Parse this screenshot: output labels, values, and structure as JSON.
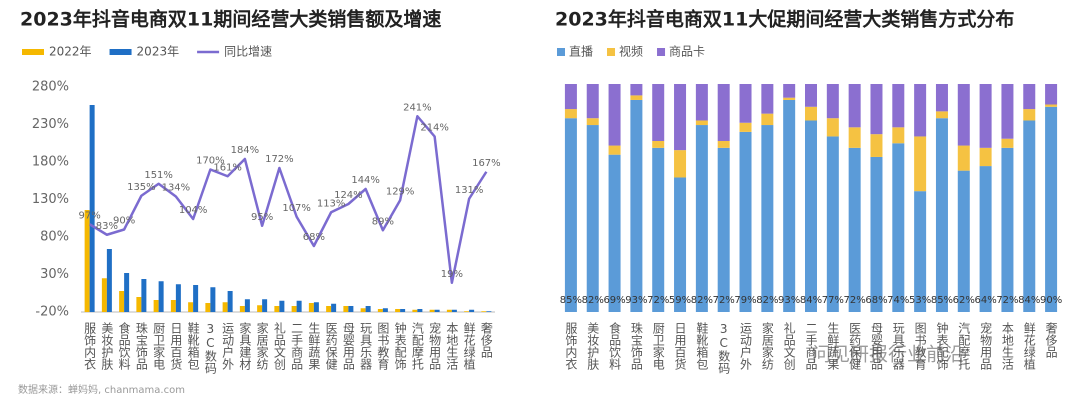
{
  "chart_data": [
    {
      "type": "combo",
      "title": "2023年抖音电商双11期间经营大类销售额及增速",
      "categories": [
        "服饰内衣",
        "美妆护肤",
        "食品饮料",
        "珠宝饰品",
        "厨卫家电",
        "日用百货",
        "鞋靴箱包",
        "3C数码",
        "运动户外",
        "家具建材",
        "家居家纺",
        "礼品文创",
        "二手商品",
        "生鲜蔬果",
        "医药保健",
        "母婴用品",
        "玩具乐器",
        "图书教育",
        "钟表配饰",
        "汽配摩托",
        "宠物用品",
        "本地生活",
        "鲜花绿植",
        "奢侈品"
      ],
      "series": [
        {
          "name": "2022年",
          "type": "bar",
          "color": "#f5b800",
          "values": [
            116,
            25,
            8,
            0,
            -4,
            -4,
            -7,
            -8,
            -7,
            -12,
            -11,
            -12,
            -12,
            -8,
            -12,
            -12,
            -15,
            -16,
            -16,
            -17,
            -17,
            -17,
            -19,
            -19
          ]
        },
        {
          "name": "2023年",
          "type": "bar",
          "color": "#1f6fc5",
          "values": [
            256,
            64,
            32,
            24,
            21,
            17,
            16,
            13,
            8,
            -3,
            -3,
            -5,
            -5,
            -7,
            -9,
            -12,
            -12,
            -15,
            -16,
            -16,
            -17,
            -17,
            -17,
            -19
          ]
        },
        {
          "name": "同比增速",
          "type": "line",
          "color": "#7b6bd0",
          "values": [
            97,
            83,
            90,
            135,
            151,
            134,
            104,
            170,
            161,
            184,
            95,
            172,
            107,
            68,
            113,
            124,
            144,
            89,
            129,
            241,
            214,
            19,
            131,
            167
          ],
          "value_labels": [
            "97%",
            "83%",
            "90%",
            "135%",
            "151%",
            "134%",
            "104%",
            "170%",
            "161%",
            "184%",
            "95%",
            "172%",
            "107%",
            "68%",
            "113%",
            "124%",
            "144%",
            "89%",
            "129%",
            "241%",
            "214%",
            "19%",
            "131%",
            "167%"
          ]
        }
      ],
      "ylim": [
        -20,
        280
      ],
      "yticks": [
        {
          "value": -20,
          "label": "-20%"
        },
        {
          "value": 30,
          "label": "30%"
        },
        {
          "value": 80,
          "label": "80%"
        },
        {
          "value": 130,
          "label": "130%"
        },
        {
          "value": 180,
          "label": "180%"
        },
        {
          "value": 230,
          "label": "230%"
        },
        {
          "value": 280,
          "label": "280%"
        }
      ],
      "grid": false,
      "legend": "top-left"
    },
    {
      "type": "stacked_bar",
      "title": "2023年抖音电商双11大促期间经营大类销售方式分布",
      "categories": [
        "服饰内衣",
        "美妆护肤",
        "食品饮料",
        "珠宝饰品",
        "厨卫家电",
        "日用百货",
        "鞋靴箱包",
        "3C数码",
        "运动户外",
        "家居家纺",
        "礼品文创",
        "二手商品",
        "生鲜蔬果",
        "医药保健",
        "母婴用品",
        "玩具乐器",
        "图书教育",
        "钟表配饰",
        "汽配摩托",
        "宠物用品",
        "本地生活",
        "鲜花绿植",
        "奢侈品"
      ],
      "series": [
        {
          "name": "直播",
          "color": "#5b9bd8",
          "values": [
            85,
            82,
            69,
            93,
            72,
            59,
            82,
            72,
            79,
            82,
            93,
            84,
            77,
            72,
            68,
            74,
            53,
            85,
            62,
            64,
            72,
            84,
            90
          ],
          "value_labels": [
            "85%",
            "82%",
            "69%",
            "93%",
            "72%",
            "59%",
            "82%",
            "72%",
            "79%",
            "82%",
            "93%",
            "84%",
            "77%",
            "72%",
            "68%",
            "74%",
            "53%",
            "85%",
            "62%",
            "64%",
            "72%",
            "84%",
            "90%"
          ]
        },
        {
          "name": "视频",
          "color": "#f5c242",
          "values": [
            4,
            3,
            4,
            2,
            3,
            12,
            2,
            3,
            4,
            5,
            1,
            6,
            8,
            9,
            10,
            7,
            24,
            3,
            11,
            8,
            4,
            5,
            1
          ]
        },
        {
          "name": "商品卡",
          "color": "#8b6fd0",
          "values": [
            11,
            15,
            27,
            5,
            25,
            29,
            16,
            25,
            17,
            13,
            6,
            10,
            15,
            19,
            22,
            19,
            23,
            12,
            27,
            28,
            24,
            11,
            9
          ]
        }
      ],
      "legend": "top-left"
    }
  ],
  "source": "数据来源：蝉妈妈, chanmama.com",
  "watermark": "问见研报行业前沿"
}
